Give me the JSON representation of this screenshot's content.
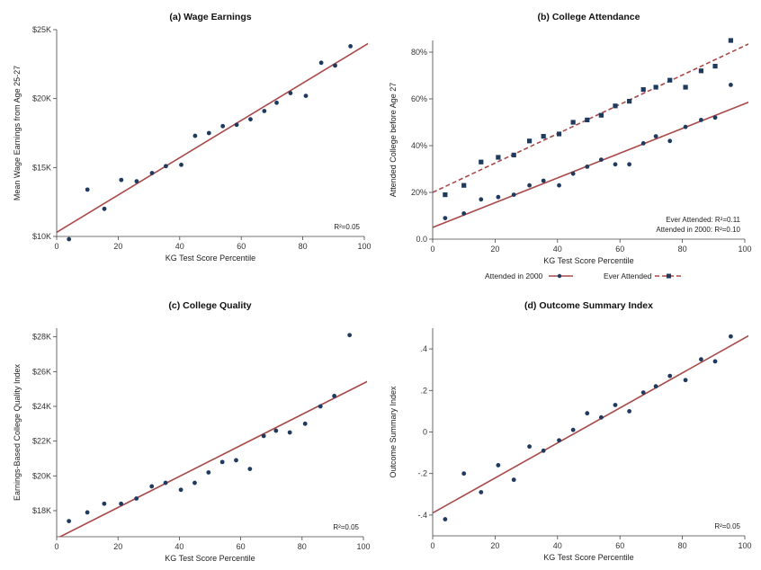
{
  "fit_color": "#a94a4a",
  "point_color": "#1f3a5f",
  "chart_data": [
    {
      "id": "wage",
      "type": "scatter",
      "title": "(a) Wage Earnings",
      "xlabel": "KG Test Score Percentile",
      "ylabel": "Mean Wage Earnings from Age 25-27",
      "xlim": [
        0,
        100
      ],
      "ylim": [
        10000,
        25000
      ],
      "xticks": [
        0,
        20,
        40,
        60,
        80,
        100
      ],
      "yticks": [
        {
          "v": 10000,
          "label": "$10K"
        },
        {
          "v": 15000,
          "label": "$15K"
        },
        {
          "v": 20000,
          "label": "$20K"
        },
        {
          "v": 25000,
          "label": "$25K"
        }
      ],
      "annotations": [
        "R²=0.05"
      ],
      "series": [
        {
          "x": [
            4,
            10,
            15.5,
            21,
            26,
            31,
            35.5,
            40.5,
            45,
            49.5,
            54,
            58.5,
            63,
            67.5,
            71.5,
            76,
            81,
            86,
            90.5,
            95.5
          ],
          "y": [
            9800,
            13400,
            12000,
            14100,
            14000,
            14600,
            15100,
            15200,
            17300,
            17500,
            18000,
            18100,
            18500,
            19100,
            19700,
            20400,
            20200,
            22600,
            22400,
            23800
          ],
          "fit": [
            [
              0,
              10300
            ],
            [
              102,
              24100
            ]
          ]
        }
      ]
    },
    {
      "id": "attend",
      "type": "scatter",
      "title": "(b) College Attendance",
      "xlabel": "KG Test Score Percentile",
      "ylabel": "Attended College before Age 27",
      "xlim": [
        0,
        100
      ],
      "ylim": [
        0,
        0.85
      ],
      "xticks": [
        0,
        20,
        40,
        60,
        80,
        100
      ],
      "yticks": [
        {
          "v": 0,
          "label": "0.0"
        },
        {
          "v": 0.2,
          "label": "20%"
        },
        {
          "v": 0.4,
          "label": "40%"
        },
        {
          "v": 0.6,
          "label": "60%"
        },
        {
          "v": 0.8,
          "label": "80%"
        }
      ],
      "annotations": [
        "Ever Attended: R²=0.11",
        "Attended in 2000: R²=0.10"
      ],
      "legend": [
        "Attended in 2000",
        "Ever Attended"
      ],
      "series": [
        {
          "name": "Attended in 2000",
          "marker": "circle",
          "dashed": false,
          "x": [
            4,
            10,
            15.5,
            21,
            26,
            31,
            35.5,
            40.5,
            45,
            49.5,
            54,
            58.5,
            63,
            67.5,
            71.5,
            76,
            81,
            86,
            90.5,
            95.5
          ],
          "y": [
            0.09,
            0.11,
            0.17,
            0.18,
            0.19,
            0.23,
            0.25,
            0.23,
            0.28,
            0.31,
            0.34,
            0.32,
            0.32,
            0.41,
            0.44,
            0.42,
            0.48,
            0.51,
            0.52,
            0.66
          ],
          "fit": [
            [
              0,
              0.05
            ],
            [
              102,
              0.59
            ]
          ]
        },
        {
          "name": "Ever Attended",
          "marker": "square",
          "dashed": true,
          "x": [
            4,
            10,
            15.5,
            21,
            26,
            31,
            35.5,
            40.5,
            45,
            49.5,
            54,
            58.5,
            63,
            67.5,
            71.5,
            76,
            81,
            86,
            90.5,
            95.5
          ],
          "y": [
            0.19,
            0.23,
            0.33,
            0.35,
            0.36,
            0.42,
            0.44,
            0.45,
            0.5,
            0.51,
            0.53,
            0.57,
            0.59,
            0.64,
            0.65,
            0.68,
            0.65,
            0.72,
            0.74,
            0.85
          ],
          "fit": [
            [
              0,
              0.2
            ],
            [
              102,
              0.84
            ]
          ]
        }
      ]
    },
    {
      "id": "quality",
      "type": "scatter",
      "title": "(c) College Quality",
      "xlabel": "KG Test Score Percentile",
      "ylabel": "Earnings-Based College Quality Index",
      "xlim": [
        0,
        100
      ],
      "ylim": [
        16500,
        28500
      ],
      "xticks": [
        0,
        20,
        40,
        60,
        80,
        100
      ],
      "yticks": [
        {
          "v": 18000,
          "label": "$18K"
        },
        {
          "v": 20000,
          "label": "$20K"
        },
        {
          "v": 22000,
          "label": "$22K"
        },
        {
          "v": 24000,
          "label": "$24K"
        },
        {
          "v": 26000,
          "label": "$26K"
        },
        {
          "v": 28000,
          "label": "$28K"
        }
      ],
      "annotations": [
        "R²=0.05"
      ],
      "series": [
        {
          "x": [
            4,
            10,
            15.5,
            21,
            26,
            31,
            35.5,
            40.5,
            45,
            49.5,
            54,
            58.5,
            63,
            67.5,
            71.5,
            76,
            81,
            86,
            90.5,
            95.5
          ],
          "y": [
            17400,
            17900,
            18400,
            18400,
            18700,
            19400,
            19600,
            19200,
            19600,
            20200,
            20800,
            20900,
            20400,
            22300,
            22600,
            22500,
            23000,
            24000,
            24600,
            28100
          ],
          "fit": [
            [
              0,
              16400
            ],
            [
              102,
              25500
            ]
          ]
        }
      ]
    },
    {
      "id": "summary",
      "type": "scatter",
      "title": "(d) Outcome Summary Index",
      "xlabel": "KG Test Score Percentile",
      "ylabel": "Outcome Summary Index",
      "xlim": [
        0,
        100
      ],
      "ylim": [
        -0.5,
        0.5
      ],
      "xticks": [
        0,
        20,
        40,
        60,
        80,
        100
      ],
      "yticks": [
        {
          "v": -0.4,
          "label": "-.4"
        },
        {
          "v": -0.2,
          "label": "-.2"
        },
        {
          "v": 0,
          "label": "0"
        },
        {
          "v": 0.2,
          "label": ".2"
        },
        {
          "v": 0.4,
          "label": ".4"
        }
      ],
      "annotations": [
        "R²=0.05"
      ],
      "series": [
        {
          "x": [
            4,
            10,
            15.5,
            21,
            26,
            31,
            35.5,
            40.5,
            45,
            49.5,
            54,
            58.5,
            63,
            67.5,
            71.5,
            76,
            81,
            86,
            90.5,
            95.5
          ],
          "y": [
            -0.42,
            -0.2,
            -0.29,
            -0.16,
            -0.23,
            -0.07,
            -0.09,
            -0.04,
            0.01,
            0.09,
            0.07,
            0.13,
            0.1,
            0.19,
            0.22,
            0.27,
            0.25,
            0.35,
            0.34,
            0.46
          ],
          "fit": [
            [
              0,
              -0.39
            ],
            [
              102,
              0.47
            ]
          ]
        }
      ]
    }
  ]
}
